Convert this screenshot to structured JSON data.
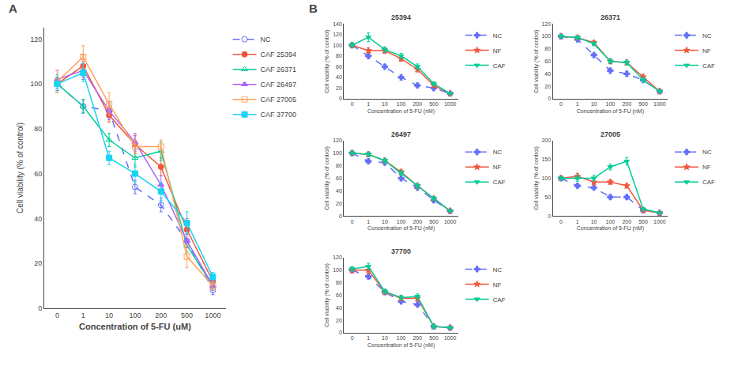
{
  "chart_data": [
    {
      "type": "line",
      "annotations": [
        {
          "text": "A"
        }
      ],
      "xlabel": "Concentration of 5-FU (uM)",
      "ylabel": "Cell viability (% of control)",
      "categories": [
        "0",
        "1",
        "10",
        "100",
        "200",
        "500",
        "1000"
      ],
      "ylim": [
        0,
        125
      ],
      "yticks": [
        0,
        20,
        40,
        60,
        80,
        100,
        120
      ],
      "grid": false,
      "legend": "upper right",
      "series": [
        {
          "name": "NC",
          "marker": "circle-open",
          "line_style": "dash",
          "values": [
            100,
            90,
            88,
            54,
            46,
            30,
            8
          ],
          "yerr": [
            3,
            3,
            3,
            3,
            3,
            3,
            2
          ]
        },
        {
          "name": "CAF 25394",
          "marker": "circle",
          "line_style": "solid",
          "values": [
            100,
            108,
            86,
            73,
            63,
            35,
            12
          ],
          "yerr": [
            3,
            5,
            3,
            4,
            4,
            5,
            2
          ]
        },
        {
          "name": "CAF 26371",
          "marker": "triangle-up-open",
          "line_style": "solid",
          "values": [
            100,
            90,
            75,
            67,
            70,
            28,
            10
          ],
          "yerr": [
            4,
            3,
            3,
            4,
            4,
            3,
            2
          ]
        },
        {
          "name": "CAF 26497",
          "marker": "triangle-up",
          "line_style": "solid",
          "values": [
            102,
            106,
            88,
            74,
            55,
            30,
            10
          ],
          "yerr": [
            4,
            4,
            4,
            4,
            4,
            3,
            2
          ]
        },
        {
          "name": "CAF 27005",
          "marker": "square-open",
          "line_style": "solid",
          "values": [
            101,
            112,
            91,
            72,
            72,
            23,
            10
          ],
          "yerr": [
            5,
            5,
            5,
            3,
            3,
            5,
            2
          ]
        },
        {
          "name": "CAF 37700",
          "marker": "square",
          "line_style": "solid",
          "values": [
            100,
            105,
            67,
            60,
            52,
            38,
            14
          ],
          "yerr": [
            3,
            4,
            3,
            4,
            4,
            5,
            2
          ]
        }
      ]
    },
    {
      "type": "line",
      "title": "25394",
      "annotations": [
        {
          "text": "B"
        }
      ],
      "xlabel": "Concentration of 5-FU (nM)",
      "ylabel": "Cell viability (% of control)",
      "categories": [
        "0",
        "1",
        "10",
        "100",
        "200",
        "500",
        "1000"
      ],
      "ylim": [
        0,
        140
      ],
      "yticks": [
        0,
        20,
        40,
        60,
        80,
        100,
        120,
        140
      ],
      "grid": false,
      "legend": "upper right",
      "series": [
        {
          "name": "NC",
          "marker": "cross",
          "line_style": "dash",
          "values": [
            100,
            80,
            60,
            40,
            25,
            20,
            10
          ],
          "yerr": [
            4,
            5,
            4,
            5,
            4,
            4,
            3
          ]
        },
        {
          "name": "NF",
          "marker": "star",
          "line_style": "solid",
          "values": [
            100,
            90,
            90,
            75,
            55,
            25,
            10
          ],
          "yerr": [
            4,
            5,
            5,
            5,
            5,
            4,
            2
          ]
        },
        {
          "name": "CAF",
          "marker": "triangle-down",
          "line_style": "solid",
          "values": [
            100,
            115,
            92,
            80,
            60,
            28,
            10
          ],
          "yerr": [
            5,
            8,
            5,
            5,
            5,
            4,
            2
          ]
        }
      ]
    },
    {
      "type": "line",
      "title": "26371",
      "xlabel": "Concentration of 5-FU (nM)",
      "ylabel": "Cell viability (% of control)",
      "categories": [
        "0",
        "1",
        "10",
        "100",
        "200",
        "500",
        "1000"
      ],
      "ylim": [
        0,
        120
      ],
      "yticks": [
        0,
        20,
        40,
        60,
        80,
        100,
        120
      ],
      "grid": false,
      "legend": "upper right",
      "series": [
        {
          "name": "NC",
          "marker": "cross",
          "line_style": "dash",
          "values": [
            100,
            95,
            70,
            45,
            40,
            30,
            12
          ],
          "yerr": [
            4,
            3,
            3,
            4,
            4,
            4,
            2
          ]
        },
        {
          "name": "NF",
          "marker": "star",
          "line_style": "solid",
          "values": [
            100,
            98,
            90,
            60,
            58,
            35,
            12
          ],
          "yerr": [
            3,
            3,
            3,
            4,
            4,
            4,
            2
          ]
        },
        {
          "name": "CAF",
          "marker": "triangle-down",
          "line_style": "solid",
          "values": [
            100,
            98,
            88,
            60,
            58,
            30,
            12
          ],
          "yerr": [
            3,
            3,
            3,
            4,
            4,
            4,
            2
          ]
        }
      ]
    },
    {
      "type": "line",
      "title": "26497",
      "xlabel": "Concentration of 5-FU (nM)",
      "ylabel": "Cell viability (% of control)",
      "categories": [
        "0",
        "1",
        "10",
        "100",
        "200",
        "500",
        "1000"
      ],
      "ylim": [
        0,
        120
      ],
      "yticks": [
        0,
        20,
        40,
        60,
        80,
        100,
        120
      ],
      "grid": false,
      "legend": "upper right",
      "series": [
        {
          "name": "NC",
          "marker": "cross",
          "line_style": "dash",
          "values": [
            100,
            87,
            85,
            60,
            45,
            25,
            8
          ],
          "yerr": [
            4,
            4,
            4,
            4,
            4,
            3,
            2
          ]
        },
        {
          "name": "NF",
          "marker": "star",
          "line_style": "solid",
          "values": [
            100,
            98,
            88,
            70,
            48,
            28,
            8
          ],
          "yerr": [
            3,
            4,
            4,
            4,
            4,
            3,
            2
          ]
        },
        {
          "name": "CAF",
          "marker": "triangle-down",
          "line_style": "solid",
          "values": [
            100,
            98,
            88,
            68,
            48,
            28,
            8
          ],
          "yerr": [
            3,
            4,
            4,
            4,
            4,
            3,
            2
          ]
        }
      ]
    },
    {
      "type": "line",
      "title": "27005",
      "xlabel": "Concentration of 5-FU (nM)",
      "ylabel": "Cell viability (% of control)",
      "categories": [
        "0",
        "1",
        "10",
        "100",
        "200",
        "500",
        "1000"
      ],
      "ylim": [
        0,
        200
      ],
      "yticks": [
        0,
        50,
        100,
        150,
        200
      ],
      "grid": false,
      "legend": "upper right",
      "series": [
        {
          "name": "NC",
          "marker": "cross",
          "line_style": "dash",
          "values": [
            100,
            80,
            75,
            50,
            50,
            15,
            8
          ],
          "yerr": [
            5,
            5,
            5,
            5,
            5,
            3,
            2
          ]
        },
        {
          "name": "NF",
          "marker": "star",
          "line_style": "solid",
          "values": [
            100,
            105,
            90,
            90,
            80,
            15,
            8
          ],
          "yerr": [
            5,
            8,
            8,
            6,
            6,
            3,
            2
          ]
        },
        {
          "name": "CAF",
          "marker": "triangle-down",
          "line_style": "solid",
          "values": [
            100,
            100,
            100,
            130,
            145,
            18,
            8
          ],
          "yerr": [
            5,
            8,
            8,
            8,
            10,
            3,
            2
          ]
        }
      ]
    },
    {
      "type": "line",
      "title": "37700",
      "xlabel": "Concentration of 5-FU (nM)",
      "ylabel": "Cell viability (% of control)",
      "categories": [
        "0",
        "1",
        "10",
        "100",
        "200",
        "500",
        "1000"
      ],
      "ylim": [
        0,
        120
      ],
      "yticks": [
        0,
        20,
        40,
        60,
        80,
        100,
        120
      ],
      "grid": false,
      "legend": "upper right",
      "series": [
        {
          "name": "NC",
          "marker": "cross",
          "line_style": "dash",
          "values": [
            100,
            90,
            65,
            50,
            45,
            10,
            8
          ],
          "yerr": [
            4,
            4,
            4,
            4,
            4,
            3,
            2
          ]
        },
        {
          "name": "NF",
          "marker": "star",
          "line_style": "solid",
          "values": [
            100,
            100,
            65,
            55,
            55,
            10,
            8
          ],
          "yerr": [
            4,
            5,
            4,
            4,
            4,
            3,
            2
          ]
        },
        {
          "name": "CAF",
          "marker": "triangle-down",
          "line_style": "solid",
          "values": [
            102,
            106,
            66,
            56,
            58,
            10,
            8
          ],
          "yerr": [
            4,
            5,
            4,
            4,
            4,
            3,
            2
          ]
        }
      ]
    }
  ]
}
